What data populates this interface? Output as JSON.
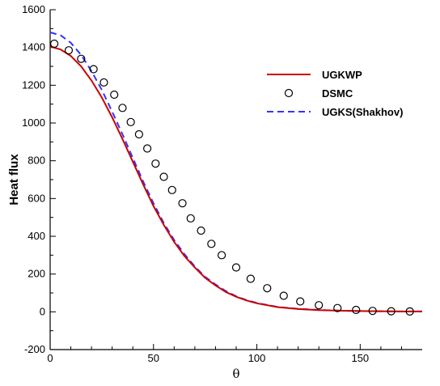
{
  "chart_data": {
    "type": "line",
    "xlabel": "θ",
    "ylabel": "Heat flux",
    "xlim": [
      0,
      180
    ],
    "ylim": [
      -200,
      1600
    ],
    "xticks": [
      0,
      50,
      100,
      150
    ],
    "yticks": [
      -200,
      0,
      200,
      400,
      600,
      800,
      1000,
      1200,
      1400,
      1600
    ],
    "grid": false,
    "legend_position": "top-right",
    "colors": {
      "ugkwp": "#cc0000",
      "ugks": "#3333ff",
      "dsmc": "#000000"
    },
    "series": [
      {
        "name": "UGKWP",
        "style": "solid-line",
        "x": [
          0,
          5,
          10,
          15,
          20,
          25,
          30,
          35,
          40,
          45,
          50,
          55,
          60,
          65,
          70,
          75,
          80,
          85,
          90,
          95,
          100,
          110,
          120,
          130,
          140,
          150,
          160,
          170,
          180
        ],
        "y": [
          1405,
          1390,
          1355,
          1300,
          1225,
          1135,
          1030,
          915,
          795,
          675,
          560,
          460,
          370,
          295,
          235,
          180,
          140,
          105,
          80,
          60,
          45,
          25,
          15,
          9,
          6,
          4,
          3,
          2,
          2
        ]
      },
      {
        "name": "DSMC",
        "style": "open-circles",
        "x": [
          2,
          9,
          15,
          21,
          26,
          31,
          35,
          39,
          43,
          47,
          51,
          55,
          59,
          64,
          68,
          73,
          78,
          83,
          90,
          97,
          105,
          113,
          121,
          130,
          139,
          148,
          156,
          165,
          174
        ],
        "y": [
          1420,
          1385,
          1340,
          1285,
          1215,
          1150,
          1080,
          1005,
          940,
          865,
          785,
          715,
          645,
          575,
          495,
          430,
          360,
          300,
          235,
          175,
          125,
          85,
          55,
          35,
          20,
          10,
          5,
          3,
          2
        ]
      },
      {
        "name": "UGKS(Shakhov)",
        "style": "dashed-line",
        "x": [
          0,
          5,
          10,
          15,
          20,
          25,
          30,
          35,
          40,
          45,
          50,
          55,
          60,
          65,
          70,
          75,
          80,
          85,
          90,
          95,
          100,
          110,
          120,
          130,
          140,
          150,
          160,
          170,
          180
        ],
        "y": [
          1480,
          1465,
          1425,
          1360,
          1275,
          1175,
          1060,
          940,
          815,
          690,
          575,
          470,
          380,
          305,
          240,
          185,
          145,
          110,
          82,
          62,
          47,
          26,
          16,
          10,
          6,
          4,
          3,
          2,
          2
        ]
      }
    ]
  }
}
